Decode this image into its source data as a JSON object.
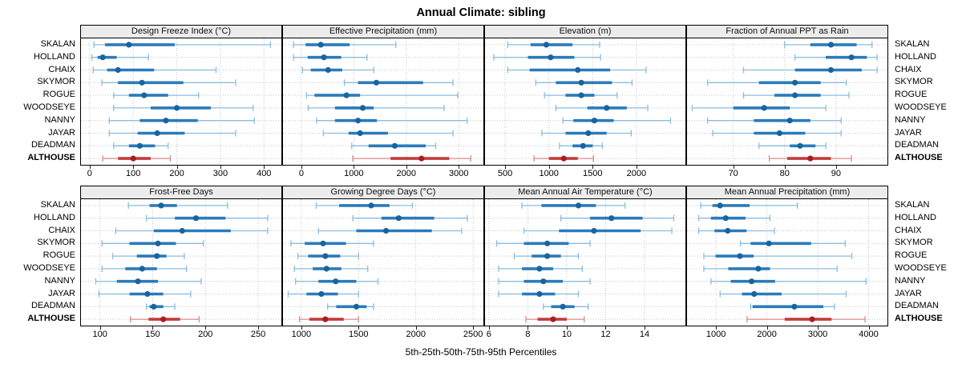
{
  "title": "Annual Climate: sibling",
  "caption": "5th-25th-50th-75th-95th Percentiles",
  "colors": {
    "normal": {
      "whisker": "#8abddf",
      "bar": "#2b7bb9",
      "dot": "#17659f"
    },
    "highlight": {
      "whisker": "#d98a8a",
      "bar": "#c23b3b",
      "dot": "#a81e1e"
    },
    "grid": "#c6c6c6",
    "panel_header_bg": "#ececec",
    "panel_border": "#000000"
  },
  "chart_data": {
    "type": "dotplot",
    "layout": {
      "rows": 2,
      "cols": 4,
      "grid": "dotted",
      "site_labels": "both-sides"
    },
    "percentile_labels": [
      "5th",
      "25th",
      "50th",
      "75th",
      "95th"
    ],
    "categories": [
      "SKALAN",
      "HOLLAND",
      "CHAIX",
      "SKYMOR",
      "ROGUE",
      "WOODSEYE",
      "NANNY",
      "JAYAR",
      "DEADMAN",
      "ALTHOUSE"
    ],
    "highlight": "ALTHOUSE",
    "panels": [
      {
        "title": "Design Freeze Index (°C)",
        "xlim": [
          -20,
          440
        ],
        "ticks": [
          0,
          100,
          200,
          300,
          400
        ],
        "values": [
          [
            10,
            35,
            90,
            195,
            415
          ],
          [
            5,
            18,
            30,
            62,
            135
          ],
          [
            8,
            40,
            65,
            148,
            290
          ],
          [
            28,
            65,
            120,
            215,
            335
          ],
          [
            55,
            90,
            125,
            180,
            250
          ],
          [
            55,
            140,
            200,
            278,
            375
          ],
          [
            45,
            115,
            175,
            248,
            378
          ],
          [
            45,
            110,
            155,
            218,
            335
          ],
          [
            55,
            90,
            115,
            150,
            180
          ],
          [
            30,
            65,
            100,
            140,
            185
          ]
        ]
      },
      {
        "title": "Effective Precipitation (mm)",
        "xlim": [
          -350,
          3470
        ],
        "ticks": [
          0,
          1000,
          2000,
          3000
        ],
        "values": [
          [
            -150,
            80,
            370,
            920,
            1800
          ],
          [
            -150,
            120,
            430,
            760,
            1250
          ],
          [
            20,
            180,
            510,
            780,
            1380
          ],
          [
            820,
            1080,
            1430,
            2320,
            2890
          ],
          [
            100,
            250,
            860,
            1120,
            2980
          ],
          [
            130,
            640,
            1170,
            1380,
            2720
          ],
          [
            290,
            640,
            1080,
            1440,
            3160
          ],
          [
            420,
            900,
            1120,
            1650,
            2890
          ],
          [
            960,
            1280,
            1780,
            2370,
            2560
          ],
          [
            980,
            1700,
            2290,
            2820,
            3230
          ]
        ]
      },
      {
        "title": "Elevation (m)",
        "xlim": [
          270,
          2560
        ],
        "ticks": [
          500,
          1000,
          1500,
          2000
        ],
        "values": [
          [
            530,
            790,
            970,
            1270,
            1580
          ],
          [
            370,
            760,
            1020,
            1290,
            1590
          ],
          [
            530,
            780,
            1330,
            1700,
            2110
          ],
          [
            850,
            1080,
            1370,
            1720,
            1950
          ],
          [
            950,
            1190,
            1370,
            1520,
            1780
          ],
          [
            1080,
            1440,
            1660,
            1890,
            2130
          ],
          [
            1160,
            1280,
            1520,
            1740,
            2390
          ],
          [
            920,
            1190,
            1450,
            1660,
            1940
          ],
          [
            1120,
            1270,
            1390,
            1500,
            1610
          ],
          [
            830,
            1000,
            1170,
            1330,
            1510
          ]
        ]
      },
      {
        "title": "Fraction of Annual PPT as Rain",
        "xlim": [
          61,
          100
        ],
        "ticks": [
          70,
          80,
          90
        ],
        "values": [
          [
            80,
            85,
            89,
            94,
            97
          ],
          [
            82,
            88,
            93,
            96,
            98
          ],
          [
            72,
            82,
            89,
            95,
            98
          ],
          [
            65,
            75,
            82,
            87,
            92
          ],
          [
            72,
            78,
            82,
            87,
            92.5
          ],
          [
            62,
            70,
            76,
            81,
            88
          ],
          [
            65,
            74,
            81,
            85,
            91
          ],
          [
            66,
            74,
            79,
            84,
            91
          ],
          [
            75,
            81,
            83,
            86,
            88
          ],
          [
            77,
            80.5,
            85,
            89,
            93
          ]
        ]
      },
      {
        "title": "Frost-Free Days",
        "xlim": [
          82,
          272
        ],
        "ticks": [
          100,
          150,
          200,
          250
        ],
        "values": [
          [
            127,
            147,
            158,
            173,
            221
          ],
          [
            144,
            171,
            191,
            219,
            259
          ],
          [
            115,
            151,
            178,
            224,
            259
          ],
          [
            102,
            128,
            155,
            172,
            198
          ],
          [
            112,
            135,
            154,
            163,
            180
          ],
          [
            102,
            124,
            140,
            154,
            182
          ],
          [
            96,
            116,
            136,
            155,
            196
          ],
          [
            99,
            128,
            145,
            160,
            186
          ],
          [
            144,
            147,
            151,
            160,
            171
          ],
          [
            129,
            146,
            160,
            176,
            194
          ]
        ]
      },
      {
        "title": "Growing Degree Days (°C)",
        "xlim": [
          840,
          2590
        ],
        "ticks": [
          1000,
          1500,
          2000,
          2500
        ],
        "values": [
          [
            1130,
            1330,
            1610,
            1770,
            1970
          ],
          [
            1450,
            1700,
            1850,
            2160,
            2450
          ],
          [
            1150,
            1480,
            1740,
            2140,
            2400
          ],
          [
            910,
            1030,
            1190,
            1390,
            1630
          ],
          [
            970,
            1060,
            1210,
            1340,
            1500
          ],
          [
            940,
            1100,
            1220,
            1350,
            1580
          ],
          [
            950,
            1150,
            1300,
            1480,
            1670
          ],
          [
            885,
            1045,
            1175,
            1320,
            1500
          ],
          [
            1230,
            1305,
            1480,
            1570,
            1630
          ],
          [
            985,
            1070,
            1210,
            1370,
            1500
          ]
        ]
      },
      {
        "title": "Mean Annual Air Temperature (°C)",
        "xlim": [
          5.8,
          16.1
        ],
        "ticks": [
          6,
          8,
          10,
          12,
          14
        ],
        "values": [
          [
            7.7,
            8.7,
            10.6,
            11.5,
            13.0
          ],
          [
            9.7,
            11.2,
            12.3,
            13.9,
            15.5
          ],
          [
            7.8,
            9.6,
            11.4,
            13.8,
            15.4
          ],
          [
            6.4,
            7.8,
            9.0,
            10.1,
            11.2
          ],
          [
            7.3,
            8.2,
            9.0,
            9.7,
            10.6
          ],
          [
            6.5,
            7.7,
            8.6,
            9.3,
            10.8
          ],
          [
            6.5,
            7.8,
            8.8,
            9.8,
            11.2
          ],
          [
            6.5,
            7.7,
            8.6,
            9.4,
            10.6
          ],
          [
            8.8,
            9.2,
            9.8,
            10.4,
            11.1
          ],
          [
            7.9,
            8.5,
            9.3,
            10.0,
            10.9
          ]
        ]
      },
      {
        "title": "Mean Annual Precipitation (mm)",
        "xlim": [
          430,
          4370
        ],
        "ticks": [
          1000,
          2000,
          3000,
          4000
        ],
        "values": [
          [
            700,
            930,
            1080,
            1660,
            2600
          ],
          [
            660,
            900,
            1190,
            1580,
            2060
          ],
          [
            660,
            970,
            1230,
            1600,
            2150
          ],
          [
            1480,
            1680,
            2040,
            2870,
            3540
          ],
          [
            760,
            990,
            1470,
            1740,
            3670
          ],
          [
            760,
            1240,
            1830,
            2060,
            3380
          ],
          [
            900,
            1290,
            1700,
            2160,
            3950
          ],
          [
            1080,
            1510,
            1750,
            2290,
            3560
          ],
          [
            1680,
            1720,
            2540,
            3110,
            3330
          ],
          [
            1610,
            2350,
            2890,
            3270,
            3930
          ]
        ]
      }
    ]
  }
}
